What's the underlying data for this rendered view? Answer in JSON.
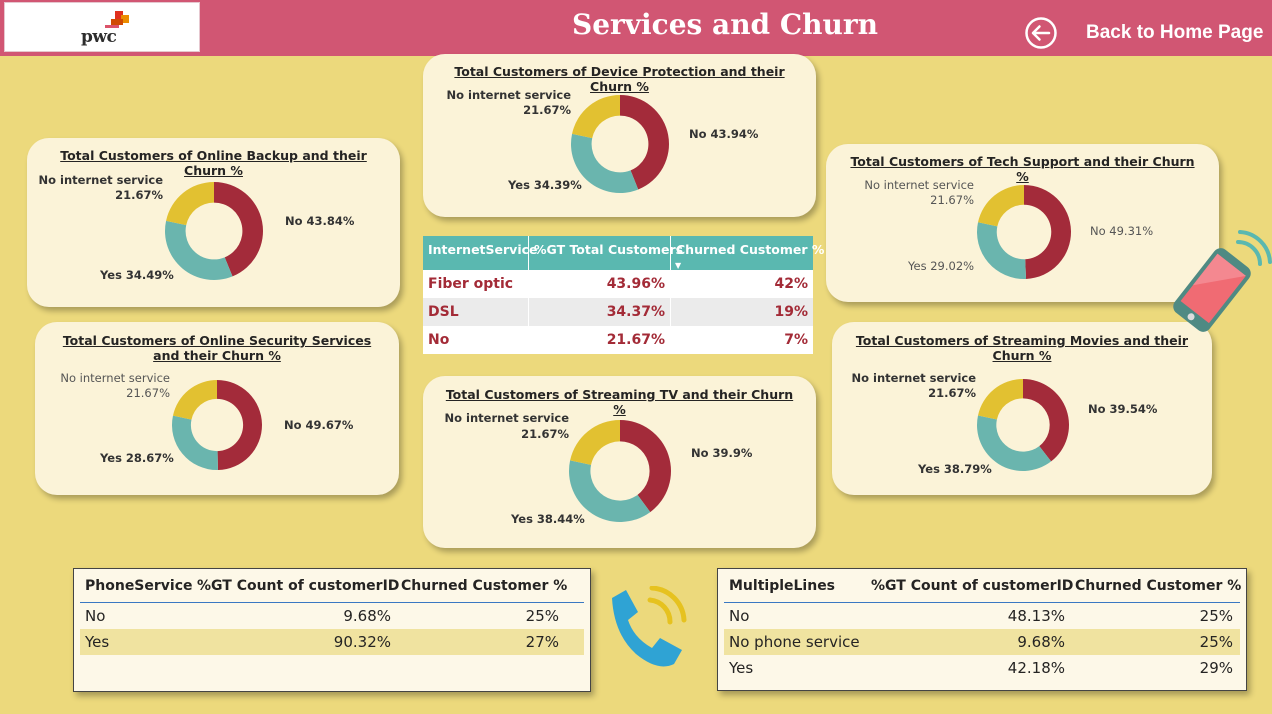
{
  "header": {
    "logo_text": "pwc",
    "title": "Services and Churn",
    "back_label": "Back to Home Page"
  },
  "colors": {
    "no": "#a32b3a",
    "yes": "#6ab5ae",
    "no_internet": "#e2c131",
    "header": "#d15673",
    "background": "#ecd97c"
  },
  "charts": {
    "device_protection": {
      "title": "Total Customers of Device Protection and their Churn %",
      "labels": {
        "no_internet": "No internet service",
        "no_internet_pct": "21.67%",
        "no": "No 43.94%",
        "yes": "Yes 34.39%"
      }
    },
    "online_backup": {
      "title": "Total Customers of Online Backup and their Churn %",
      "labels": {
        "no_internet": "No internet service",
        "no_internet_pct": "21.67%",
        "no": "No 43.84%",
        "yes": "Yes 34.49%"
      }
    },
    "tech_support": {
      "title": "Total Customers of Tech Support and their Churn %",
      "labels": {
        "no_internet": "No internet service",
        "no_internet_pct": "21.67%",
        "no": "No 49.31%",
        "yes": "Yes 29.02%"
      }
    },
    "online_security": {
      "title": "Total Customers of Online Security Services and their Churn %",
      "labels": {
        "no_internet": "No internet service",
        "no_internet_pct": "21.67%",
        "no": "No 49.67%",
        "yes": "Yes 28.67%"
      }
    },
    "streaming_tv": {
      "title": "Total Customers of Streaming TV and their Churn %",
      "labels": {
        "no_internet": "No internet service",
        "no_internet_pct": "21.67%",
        "no": "No 39.9%",
        "yes": "Yes 38.44%"
      }
    },
    "streaming_movies": {
      "title": "Total Customers of Streaming Movies and their Churn %",
      "labels": {
        "no_internet": "No internet service",
        "no_internet_pct": "21.67%",
        "no": "No 39.54%",
        "yes": "Yes 38.79%"
      }
    }
  },
  "chart_data": [
    {
      "type": "pie",
      "title": "Total Customers of Device Protection and their Churn %",
      "categories": [
        "No",
        "Yes",
        "No internet service"
      ],
      "values": [
        43.94,
        34.39,
        21.67
      ]
    },
    {
      "type": "pie",
      "title": "Total Customers of Online Backup and their Churn %",
      "categories": [
        "No",
        "Yes",
        "No internet service"
      ],
      "values": [
        43.84,
        34.49,
        21.67
      ]
    },
    {
      "type": "pie",
      "title": "Total Customers of Tech Support and their Churn %",
      "categories": [
        "No",
        "Yes",
        "No internet service"
      ],
      "values": [
        49.31,
        29.02,
        21.67
      ]
    },
    {
      "type": "pie",
      "title": "Total Customers of Online Security Services and their Churn %",
      "categories": [
        "No",
        "Yes",
        "No internet service"
      ],
      "values": [
        49.67,
        28.67,
        21.67
      ]
    },
    {
      "type": "pie",
      "title": "Total Customers of Streaming TV and their Churn %",
      "categories": [
        "No",
        "Yes",
        "No internet service"
      ],
      "values": [
        39.9,
        38.44,
        21.67
      ]
    },
    {
      "type": "pie",
      "title": "Total Customers of Streaming Movies and their Churn %",
      "categories": [
        "No",
        "Yes",
        "No internet service"
      ],
      "values": [
        39.54,
        38.79,
        21.67
      ]
    }
  ],
  "internet_table": {
    "headers": [
      "InternetService",
      "%GT Total Customers",
      "Churned Customer %"
    ],
    "rows": [
      [
        "Fiber optic",
        "43.96%",
        "42%"
      ],
      [
        "DSL",
        "34.37%",
        "19%"
      ],
      [
        "No",
        "21.67%",
        "7%"
      ]
    ]
  },
  "phone_table": {
    "headers": [
      "PhoneService",
      "%GT Count of customerID",
      "Churned Customer %"
    ],
    "rows": [
      [
        "No",
        "9.68%",
        "25%"
      ],
      [
        "Yes",
        "90.32%",
        "27%"
      ]
    ]
  },
  "multiline_table": {
    "headers": [
      "MultipleLines",
      "%GT Count of customerID",
      "Churned Customer %"
    ],
    "rows": [
      [
        "No",
        "48.13%",
        "25%"
      ],
      [
        "No phone service",
        "9.68%",
        "25%"
      ],
      [
        "Yes",
        "42.18%",
        "29%"
      ]
    ]
  },
  "icons": {
    "back": "back-arrow-icon",
    "phone": "phone-handset-icon",
    "mobile": "mobile-phone-icon",
    "logo": "pwc-logo-icon"
  }
}
